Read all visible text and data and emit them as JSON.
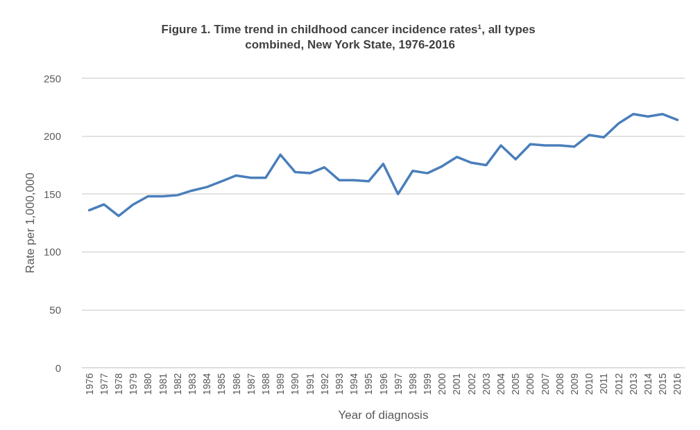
{
  "chart_data": {
    "type": "line",
    "title": "Figure 1. Time trend in childhood cancer incidence rates¹, all types combined, New York State, 1976-2016",
    "xlabel": "Year of diagnosis",
    "ylabel": "Rate per 1,000,000",
    "categories": [
      "1976",
      "1977",
      "1978",
      "1979",
      "1980",
      "1981",
      "1982",
      "1983",
      "1984",
      "1985",
      "1986",
      "1987",
      "1988",
      "1989",
      "1990",
      "1991",
      "1992",
      "1993",
      "1994",
      "1995",
      "1996",
      "1997",
      "1998",
      "1999",
      "2000",
      "2001",
      "2002",
      "2003",
      "2004",
      "2005",
      "2006",
      "2007",
      "2008",
      "2009",
      "2010",
      "2011",
      "2012",
      "2013",
      "2014",
      "2015",
      "2016"
    ],
    "series": [
      {
        "color": "#4a7ebb",
        "values": [
          136,
          141,
          131,
          141,
          148,
          148,
          149,
          153,
          156,
          161,
          166,
          164,
          164,
          184,
          169,
          168,
          173,
          162,
          162,
          161,
          176,
          150,
          170,
          168,
          174,
          182,
          177,
          175,
          192,
          180,
          193,
          192,
          192,
          191,
          201,
          199,
          211,
          219,
          217,
          219,
          214
        ]
      }
    ],
    "ylim": [
      0,
      250
    ],
    "yticks": [
      0,
      50,
      100,
      150,
      200,
      250
    ],
    "grid": "y",
    "marker": "none",
    "line_style": "solid"
  }
}
